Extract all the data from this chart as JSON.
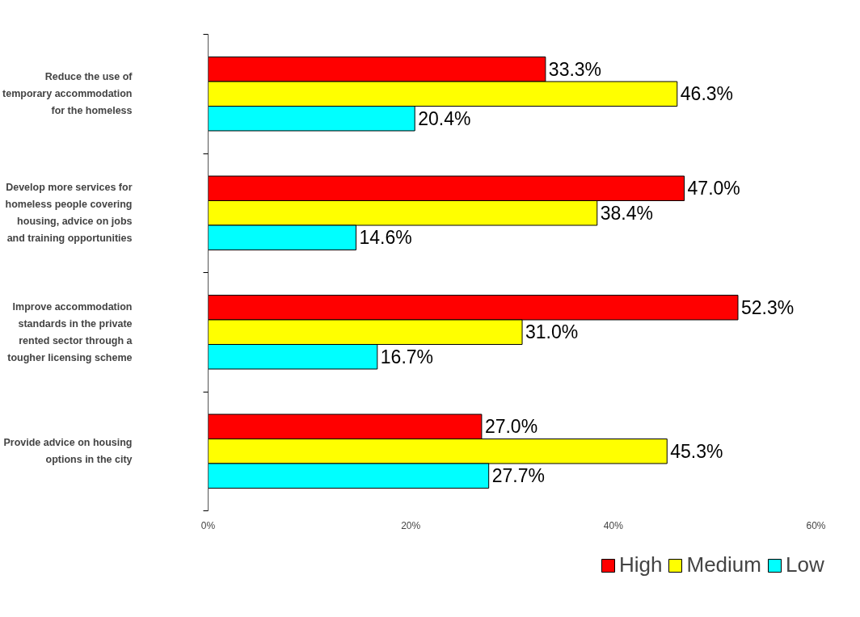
{
  "chart_data": {
    "type": "bar",
    "orientation": "horizontal",
    "categories": [
      "Reduce the use of temporary accommodation for the homeless",
      "Develop more services for homeless people covering housing, advice on jobs and training opportunities",
      "Improve accommodation standards in the private rented sector through a tougher licensing scheme",
      "Provide advice on housing options in the city"
    ],
    "series": [
      {
        "name": "High",
        "color": "#ff0000",
        "values": [
          33.3,
          47.0,
          52.3,
          27.0
        ],
        "value_labels": [
          "33.3%",
          "47.0%",
          "52.3%",
          "27.0%"
        ]
      },
      {
        "name": "Medium",
        "color": "#ffff00",
        "values": [
          46.3,
          38.4,
          31.0,
          45.3
        ],
        "value_labels": [
          "46.3%",
          "38.4%",
          "31.0%",
          "45.3%"
        ]
      },
      {
        "name": "Low",
        "color": "#00ffff",
        "values": [
          20.4,
          14.6,
          16.7,
          27.7
        ],
        "value_labels": [
          "20.4%",
          "14.6%",
          "16.7%",
          "27.7%"
        ]
      }
    ],
    "xlim": [
      0,
      60
    ],
    "xticks": [
      {
        "value": 0,
        "label": "0%"
      },
      {
        "value": 20,
        "label": "20%"
      },
      {
        "value": 40,
        "label": "40%"
      },
      {
        "value": 60,
        "label": "60%"
      }
    ],
    "grid": false,
    "legend": "bottom"
  }
}
